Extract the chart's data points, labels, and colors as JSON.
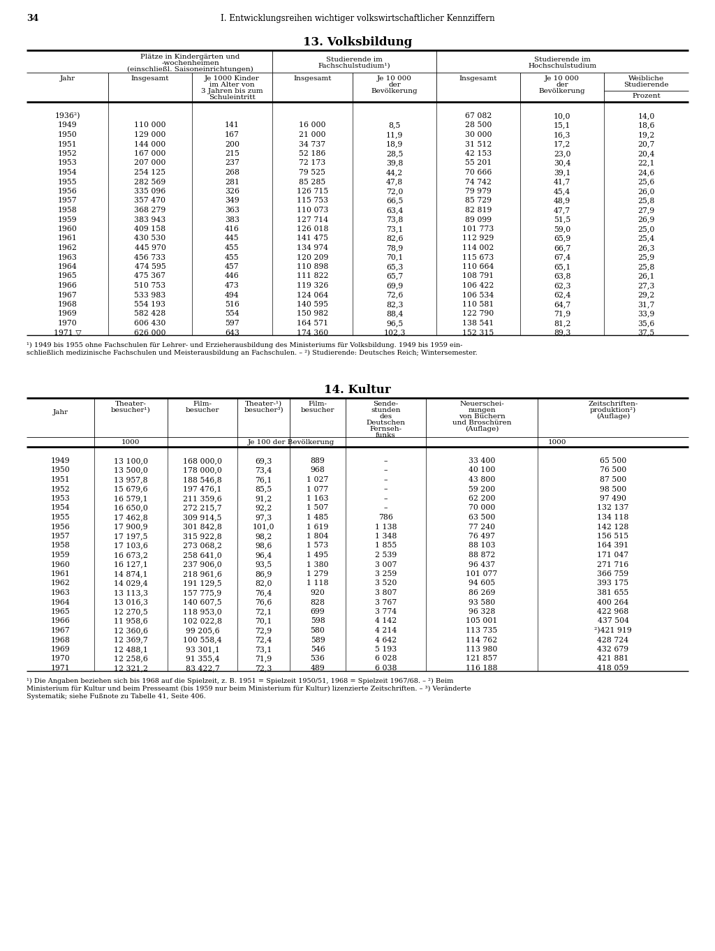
{
  "page_number": "34",
  "header": "I. Entwicklungsreihen wichtiger volkswirtschaftlicher Kennziffern",
  "table1_title": "13. Volksbildung",
  "table1_data": [
    [
      "1936²)",
      "",
      "",
      "",
      "",
      "67 082",
      "10,0",
      "14,0"
    ],
    [
      "1949",
      "110 000",
      "141",
      "16 000",
      "8,5",
      "28 500",
      "15,1",
      "18,6"
    ],
    [
      "1950",
      "129 000",
      "167",
      "21 000",
      "11,9",
      "30 000",
      "16,3",
      "19,2"
    ],
    [
      "1951",
      "144 000",
      "200",
      "34 737",
      "18,9",
      "31 512",
      "17,2",
      "20,7"
    ],
    [
      "1952",
      "167 000",
      "215",
      "52 186",
      "28,5",
      "42 153",
      "23,0",
      "20,4"
    ],
    [
      "1953",
      "207 000",
      "237",
      "72 173",
      "39,8",
      "55 201",
      "30,4",
      "22,1"
    ],
    [
      "1954",
      "254 125",
      "268",
      "79 525",
      "44,2",
      "70 666",
      "39,1",
      "24,6"
    ],
    [
      "1955",
      "282 569",
      "281",
      "85 285",
      "47,8",
      "74 742",
      "41,7",
      "25,6"
    ],
    [
      "1956",
      "335 096",
      "326",
      "126 715",
      "72,0",
      "79 979",
      "45,4",
      "26,0"
    ],
    [
      "1957",
      "357 470",
      "349",
      "115 753",
      "66,5",
      "85 729",
      "48,9",
      "25,8"
    ],
    [
      "1958",
      "368 279",
      "363",
      "110 073",
      "63,4",
      "82 819",
      "47,7",
      "27,9"
    ],
    [
      "1959",
      "383 943",
      "383",
      "127 714",
      "73,8",
      "89 099",
      "51,5",
      "26,9"
    ],
    [
      "1960",
      "409 158",
      "416",
      "126 018",
      "73,1",
      "101 773",
      "59,0",
      "25,0"
    ],
    [
      "1961",
      "430 530",
      "445",
      "141 475",
      "82,6",
      "112 929",
      "65,9",
      "25,4"
    ],
    [
      "1962",
      "445 970",
      "455",
      "134 974",
      "78,9",
      "114 002",
      "66,7",
      "26,3"
    ],
    [
      "1963",
      "456 733",
      "455",
      "120 209",
      "70,1",
      "115 673",
      "67,4",
      "25,9"
    ],
    [
      "1964",
      "474 595",
      "457",
      "110 898",
      "65,3",
      "110 664",
      "65,1",
      "25,8"
    ],
    [
      "1965",
      "475 367",
      "446",
      "111 822",
      "65,7",
      "108 791",
      "63,8",
      "26,1"
    ],
    [
      "1966",
      "510 753",
      "473",
      "119 326",
      "69,9",
      "106 422",
      "62,3",
      "27,3"
    ],
    [
      "1967",
      "533 983",
      "494",
      "124 064",
      "72,6",
      "106 534",
      "62,4",
      "29,2"
    ],
    [
      "1968",
      "554 193",
      "516",
      "140 595",
      "82,3",
      "110 581",
      "64,7",
      "31,7"
    ],
    [
      "1969",
      "582 428",
      "554",
      "150 982",
      "88,4",
      "122 790",
      "71,9",
      "33,9"
    ],
    [
      "1970",
      "606 430",
      "597",
      "164 571",
      "96,5",
      "138 541",
      "81,2",
      "35,6"
    ],
    [
      "1971 ▽",
      "626 000",
      "643",
      "174 360",
      "102,3",
      "152 315",
      "89,3",
      "37,5"
    ]
  ],
  "table1_footnote1": "¹) 1949 bis 1955 ohne Fachschulen für Lehrer- und Erzieherausbildung des Ministeriums für Volksbildung. 1949 bis 1959 ein-",
  "table1_footnote2": "schließlich medizinische Fachschulen und Meisterausbildung an Fachschulen. – ²) Studierende: Deutsches Reich; Wintersemester.",
  "table2_title": "14. Kultur",
  "table2_data": [
    [
      "1949",
      "13 100,0",
      "168 000,0",
      "69,3",
      "889",
      "–",
      "33 400",
      "65 500"
    ],
    [
      "1950",
      "13 500,0",
      "178 000,0",
      "73,4",
      "968",
      "–",
      "40 100",
      "76 500"
    ],
    [
      "1951",
      "13 957,8",
      "188 546,8",
      "76,1",
      "1 027",
      "–",
      "43 800",
      "87 500"
    ],
    [
      "1952",
      "15 679,6",
      "197 476,1",
      "85,5",
      "1 077",
      "–",
      "59 200",
      "98 500"
    ],
    [
      "1953",
      "16 579,1",
      "211 359,6",
      "91,2",
      "1 163",
      "–",
      "62 200",
      "97 490"
    ],
    [
      "1954",
      "16 650,0",
      "272 215,7",
      "92,2",
      "1 507",
      "–",
      "70 000",
      "132 137"
    ],
    [
      "1955",
      "17 462,8",
      "309 914,5",
      "97,3",
      "1 485",
      "786",
      "63 500",
      "134 118"
    ],
    [
      "1956",
      "17 900,9",
      "301 842,8",
      "101,0",
      "1 619",
      "1 138",
      "77 240",
      "142 128"
    ],
    [
      "1957",
      "17 197,5",
      "315 922,8",
      "98,2",
      "1 804",
      "1 348",
      "76 497",
      "156 515"
    ],
    [
      "1958",
      "17 103,6",
      "273 068,2",
      "98,6",
      "1 573",
      "1 855",
      "88 103",
      "164 391"
    ],
    [
      "1959",
      "16 673,2",
      "258 641,0",
      "96,4",
      "1 495",
      "2 539",
      "88 872",
      "171 047"
    ],
    [
      "1960",
      "16 127,1",
      "237 906,0",
      "93,5",
      "1 380",
      "3 007",
      "96 437",
      "271 716"
    ],
    [
      "1961",
      "14 874,1",
      "218 961,6",
      "86,9",
      "1 279",
      "3 259",
      "101 077",
      "366 759"
    ],
    [
      "1962",
      "14 029,4",
      "191 129,5",
      "82,0",
      "1 118",
      "3 520",
      "94 605",
      "393 175"
    ],
    [
      "1963",
      "13 113,3",
      "157 775,9",
      "76,4",
      "920",
      "3 807",
      "86 269",
      "381 655"
    ],
    [
      "1964",
      "13 016,3",
      "140 607,5",
      "76,6",
      "828",
      "3 767",
      "93 580",
      "400 264"
    ],
    [
      "1965",
      "12 270,5",
      "118 953,0",
      "72,1",
      "699",
      "3 774",
      "96 328",
      "422 968"
    ],
    [
      "1966",
      "11 958,6",
      "102 022,8",
      "70,1",
      "598",
      "4 142",
      "105 001",
      "437 504"
    ],
    [
      "1967",
      "12 360,6",
      "99 205,6",
      "72,9",
      "580",
      "4 214",
      "113 735",
      "²)421 919"
    ],
    [
      "1968",
      "12 369,7",
      "100 558,4",
      "72,4",
      "589",
      "4 642",
      "114 762",
      "428 724"
    ],
    [
      "1969",
      "12 488,1",
      "93 301,1",
      "73,1",
      "546",
      "5 193",
      "113 980",
      "432 679"
    ],
    [
      "1970",
      "12 258,6",
      "91 355,4",
      "71,9",
      "536",
      "6 028",
      "121 857",
      "421 881"
    ],
    [
      "1971",
      "12 321,2",
      "83 422,7",
      "72,3",
      "489",
      "6 038",
      "116 188",
      "418 059"
    ]
  ],
  "table2_footnote1": "¹) Die Angaben beziehen sich bis 1968 auf die Spielzeit, z. B. 1951 = Spielzeit 1950/51, 1968 = Spielzeit 1967/68. – ²) Beim",
  "table2_footnote2": "Ministerium für Kultur und beim Presseamt (bis 1959 nur beim Ministerium für Kultur) lizenzierte Zeitschriften. – ³) Veränderte",
  "table2_footnote3": "Systematik; siehe Fußnote zu Tabelle 41, Seite 406."
}
